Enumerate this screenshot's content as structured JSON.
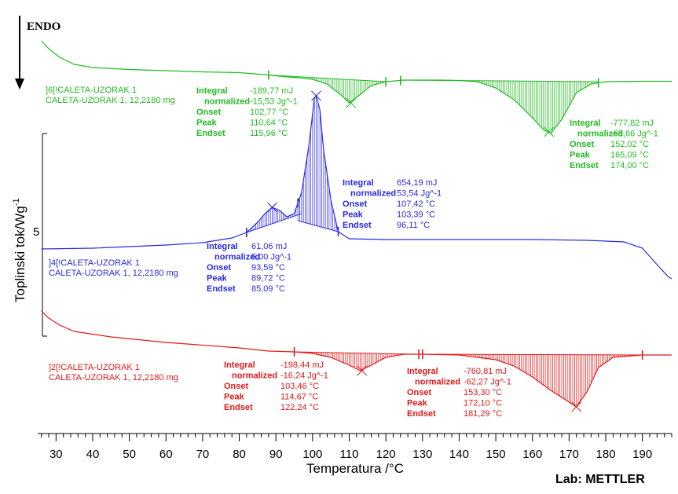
{
  "chart_data": {
    "type": "line",
    "xlabel": "Temperatura /°C",
    "ylabel": "Toplinski tok/Wg^-1",
    "ylabel_parts": {
      "main": "Toplinski tok/Wg",
      "sup": "-1"
    },
    "y_tick_label": "5",
    "endo_label": "ENDO",
    "lab_label": "Lab: METTLER",
    "xlim": [
      25,
      198
    ],
    "x_ticks": [
      30,
      40,
      50,
      60,
      70,
      80,
      90,
      100,
      110,
      120,
      130,
      140,
      150,
      160,
      170,
      180,
      190
    ],
    "grid": false,
    "series": [
      {
        "color": "#22bb22",
        "label_lines": [
          "]6[!CALETA-UZORAK 1",
          "CALETA-UZORAK 1, 12,2180 mg"
        ],
        "points": [
          [
            26,
            52
          ],
          [
            28,
            62
          ],
          [
            31,
            73
          ],
          [
            35,
            82
          ],
          [
            40,
            86
          ],
          [
            50,
            88.5
          ],
          [
            60,
            90
          ],
          [
            70,
            91.5
          ],
          [
            80,
            92.5
          ],
          [
            88,
            95.5
          ],
          [
            92,
            97.5
          ],
          [
            96,
            99
          ],
          [
            100,
            101
          ],
          [
            104,
            107
          ],
          [
            108,
            122
          ],
          [
            110,
            131
          ],
          [
            112,
            124
          ],
          [
            116,
            109
          ],
          [
            120,
            104
          ],
          [
            125,
            102
          ],
          [
            130,
            102
          ],
          [
            135,
            102
          ],
          [
            140,
            102.5
          ],
          [
            145,
            104
          ],
          [
            150,
            112
          ],
          [
            155,
            127
          ],
          [
            160,
            150
          ],
          [
            163,
            165
          ],
          [
            165,
            170
          ],
          [
            168,
            152
          ],
          [
            172,
            118
          ],
          [
            176,
            107
          ],
          [
            180,
            104
          ],
          [
            190,
            103.5
          ],
          [
            198,
            103.5
          ]
        ],
        "peaks": [
          {
            "integral": "-189,77 mJ",
            "normalized": "-15,53 Jg^-1",
            "onset": "102,77 °C",
            "peak": "110,64 °C",
            "endset": "115,96 °C"
          },
          {
            "integral": "-777,82 mJ",
            "normalized": "-63,66 Jg^-1",
            "onset": "152,02 °C",
            "peak": "165,09 °C",
            "endset": "174,00 °C"
          }
        ]
      },
      {
        "color": "#2a2ae0",
        "label_lines": [
          "]4[!CALETA-UZORAK 1",
          "CALETA-UZORAK 1, 12,2180 mg"
        ],
        "points": [
          [
            26,
            317
          ],
          [
            40,
            316
          ],
          [
            50,
            314
          ],
          [
            60,
            312
          ],
          [
            70,
            309
          ],
          [
            78,
            303
          ],
          [
            82,
            296
          ],
          [
            85,
            283
          ],
          [
            87,
            272
          ],
          [
            89,
            264
          ],
          [
            91,
            268
          ],
          [
            93,
            276
          ],
          [
            95,
            272
          ],
          [
            97,
            245
          ],
          [
            99,
            185
          ],
          [
            100.5,
            125
          ],
          [
            101,
            122
          ],
          [
            102,
            140
          ],
          [
            103,
            190
          ],
          [
            105,
            255
          ],
          [
            107,
            295
          ],
          [
            110,
            304
          ],
          [
            120,
            305
          ],
          [
            140,
            305
          ],
          [
            160,
            305
          ],
          [
            175,
            306
          ],
          [
            185,
            308
          ],
          [
            190,
            316
          ],
          [
            194,
            337
          ],
          [
            197,
            352
          ],
          [
            198,
            355
          ]
        ],
        "peaks": [
          {
            "integral": "61,06 mJ",
            "normalized": "5,00 Jg^-1",
            "onset": "93,59 °C",
            "peak": "89,72 °C",
            "endset": "85,09 °C"
          },
          {
            "integral": "654,19 mJ",
            "normalized": "53,54 Jg^-1",
            "onset": "107,42 °C",
            "peak": "103,39 °C",
            "endset": "96,11 °C"
          }
        ]
      },
      {
        "color": "#e21818",
        "label_lines": [
          "]2[!CALETA-UZORAK 1",
          "CALETA-UZORAK 1, 12,2180 mg"
        ],
        "points": [
          [
            26,
            396
          ],
          [
            28,
            405
          ],
          [
            31,
            414
          ],
          [
            35,
            422
          ],
          [
            45,
            429
          ],
          [
            60,
            436
          ],
          [
            80,
            443
          ],
          [
            88,
            447
          ],
          [
            95,
            448
          ],
          [
            100,
            450
          ],
          [
            105,
            455
          ],
          [
            110,
            465
          ],
          [
            113,
            472
          ],
          [
            116,
            465
          ],
          [
            120,
            455
          ],
          [
            125,
            451
          ],
          [
            130,
            451
          ],
          [
            135,
            451.5
          ],
          [
            140,
            452
          ],
          [
            150,
            458
          ],
          [
            155,
            466
          ],
          [
            160,
            480
          ],
          [
            165,
            497
          ],
          [
            170,
            512
          ],
          [
            172,
            518
          ],
          [
            175,
            498
          ],
          [
            178,
            468
          ],
          [
            182,
            455
          ],
          [
            190,
            452
          ],
          [
            198,
            452
          ]
        ],
        "peaks": [
          {
            "integral": "-198,44 mJ",
            "normalized": "-16,24 Jg^-1",
            "onset": "103,46 °C",
            "peak": "114,67 °C",
            "endset": "122,24 °C"
          },
          {
            "integral": "-760,81 mJ",
            "normalized": "-62,27 Jg^-1",
            "onset": "153,30 °C",
            "peak": "172,10 °C",
            "endset": "181,29 °C"
          }
        ]
      }
    ],
    "annotation_keys": {
      "integral": "Integral",
      "normalized": "normalized",
      "onset": "Onset",
      "peak": "Peak",
      "endset": "Endset"
    }
  }
}
